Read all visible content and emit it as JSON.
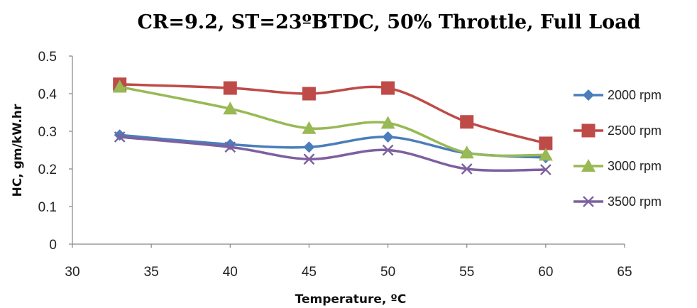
{
  "chart_data": {
    "type": "line",
    "title": "CR=9.2, ST=23ºBTDC, 50% Throttle, Full Load",
    "xlabel": "Temperature, ºC",
    "ylabel": "HC, gm/kW.hr",
    "xlim": [
      30,
      65
    ],
    "ylim": [
      0,
      0.5
    ],
    "xticks": [
      30,
      35,
      40,
      45,
      50,
      55,
      60,
      65
    ],
    "yticks": [
      "0",
      "0.1",
      "0.2",
      "0.3",
      "0.4",
      "0.5"
    ],
    "x": [
      33,
      40,
      45,
      50,
      55,
      60
    ],
    "smooth": true,
    "grid": false,
    "legend_position": "right",
    "series": [
      {
        "name": "2000 rpm",
        "values": [
          0.29,
          0.265,
          0.258,
          0.285,
          0.242,
          0.23
        ],
        "color": "#4A7EBB",
        "marker": "diamond"
      },
      {
        "name": "2500 rpm",
        "values": [
          0.425,
          0.415,
          0.4,
          0.415,
          0.325,
          0.268
        ],
        "color": "#BE4B48",
        "marker": "square"
      },
      {
        "name": "3000 rpm",
        "values": [
          0.418,
          0.36,
          0.308,
          0.322,
          0.243,
          0.237
        ],
        "color": "#98B954",
        "marker": "triangle"
      },
      {
        "name": "3500 rpm",
        "values": [
          0.285,
          0.258,
          0.226,
          0.25,
          0.2,
          0.198
        ],
        "color": "#7D60A0",
        "marker": "x"
      }
    ]
  }
}
